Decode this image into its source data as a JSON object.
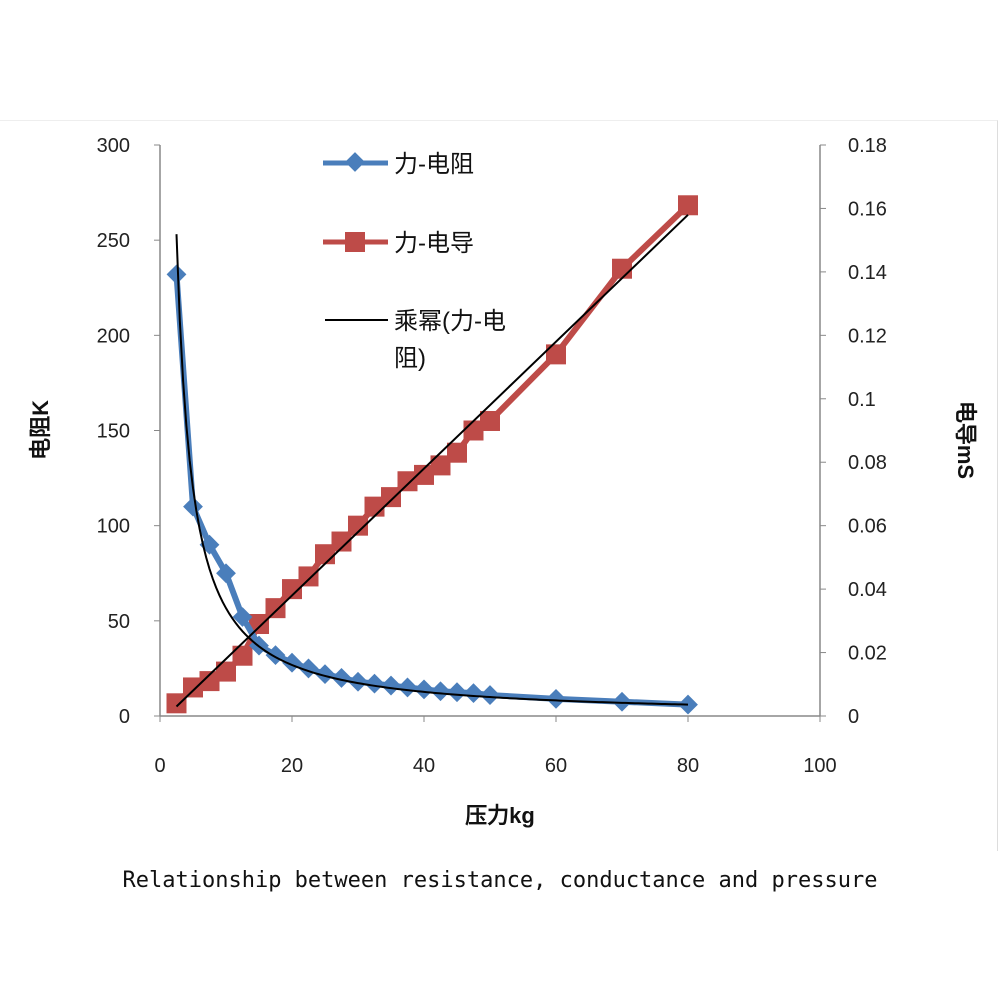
{
  "chart_data": {
    "type": "line",
    "caption": "Relationship between resistance, conductance and pressure",
    "xlabel": "压力kg",
    "ylabel_left": "电阻K",
    "ylabel_right": "电导mS",
    "xlim": [
      0,
      100
    ],
    "ylim_left": [
      0,
      300
    ],
    "ylim_right": [
      0,
      0.18
    ],
    "x_ticks": [
      "0",
      "20",
      "40",
      "60",
      "80",
      "100"
    ],
    "y_ticks_left": [
      "0",
      "50",
      "100",
      "150",
      "200",
      "250",
      "300"
    ],
    "y_ticks_right": [
      "0",
      "0.02",
      "0.04",
      "0.06",
      "0.08",
      "0.1",
      "0.12",
      "0.14",
      "0.16",
      "0.18"
    ],
    "grid": false,
    "legend_position": "top-left-inside",
    "series": [
      {
        "name": "力-电阻",
        "axis": "left",
        "color": "#4a7ebb",
        "marker": "diamond",
        "x": [
          2.5,
          5,
          7.5,
          10,
          12.5,
          15,
          17.5,
          20,
          22.5,
          25,
          27.5,
          30,
          32.5,
          35,
          37.5,
          40,
          42.5,
          45,
          47.5,
          50,
          60,
          70,
          80
        ],
        "y": [
          232,
          110,
          90,
          75,
          52,
          37,
          32,
          28,
          25,
          22,
          20,
          18,
          17,
          16,
          15,
          14,
          13,
          12.5,
          12,
          11,
          9,
          7.5,
          6
        ]
      },
      {
        "name": "力-电导",
        "axis": "right",
        "color": "#be4b48",
        "marker": "square",
        "x": [
          2.5,
          5,
          7.5,
          10,
          12.5,
          15,
          17.5,
          20,
          22.5,
          25,
          27.5,
          30,
          32.5,
          35,
          37.5,
          40,
          42.5,
          45,
          47.5,
          50,
          60,
          70,
          80
        ],
        "y": [
          0.004,
          0.009,
          0.011,
          0.014,
          0.019,
          0.029,
          0.034,
          0.04,
          0.044,
          0.051,
          0.055,
          0.06,
          0.066,
          0.069,
          0.074,
          0.076,
          0.079,
          0.083,
          0.09,
          0.093,
          0.114,
          0.141,
          0.161
        ]
      },
      {
        "name": "乘幂(力-电阻)",
        "axis": "left",
        "color": "#000000",
        "type": "power-trendline",
        "a": 681,
        "b": -1.08,
        "x_range": [
          2.5,
          80
        ]
      },
      {
        "axis": "right",
        "color": "#000000",
        "type": "linear-trendline",
        "x": [
          2.5,
          80
        ],
        "y": [
          0.003,
          0.158
        ]
      }
    ],
    "legend_lines": {
      "power_line1": "乘幂(力-电",
      "power_line2": "阻)"
    }
  }
}
